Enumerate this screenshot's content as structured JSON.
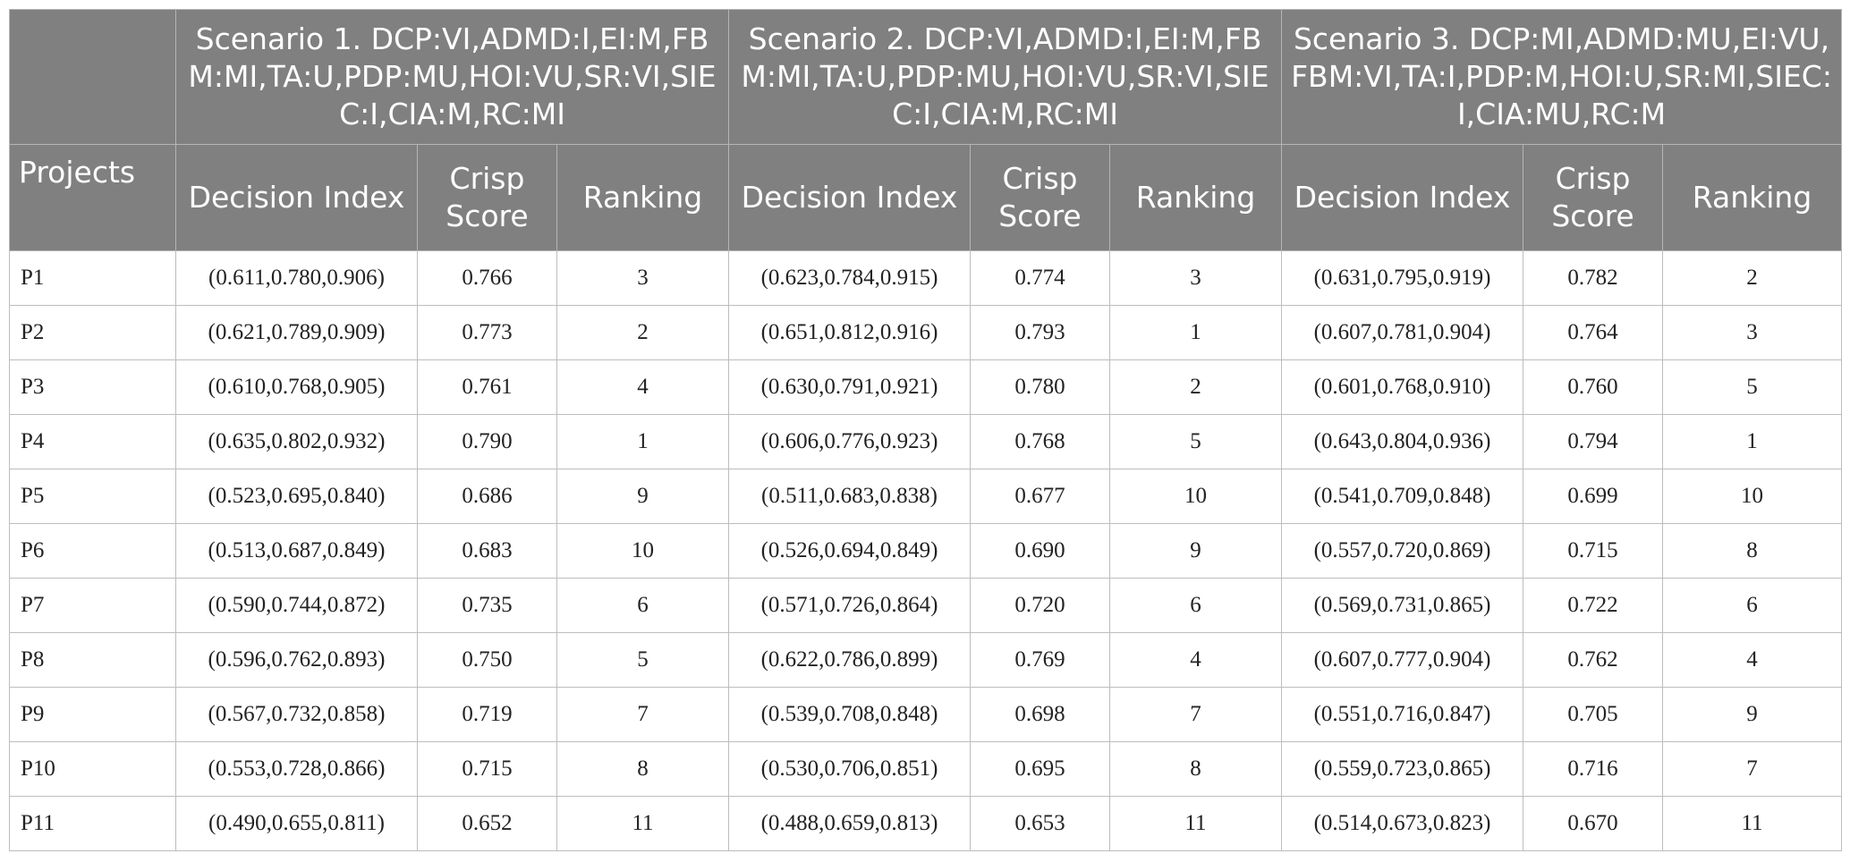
{
  "table": {
    "projects_header": "Projects",
    "scenarios": [
      {
        "title": "Scenario 1. DCP:VI,ADMD:I,EI:M,FBM:MI,TA:U,PDP:MU,HOI:VU,SR:VI,SIEC:I,CIA:M,RC:MI"
      },
      {
        "title": "Scenario 2. DCP:VI,ADMD:I,EI:M,FBM:MI,TA:U,PDP:MU,HOI:VU,SR:VI,SIEC:I,CIA:M,RC:MI"
      },
      {
        "title": "Scenario 3. DCP:MI,ADMD:MU,EI:VU,FBM:VI,TA:I,PDP:M,HOI:U,SR:MI,SIEC:I,CIA:MU,RC:M"
      }
    ],
    "sub_headers": {
      "decision_index": "Decision Index",
      "crisp_score": "Crisp Score",
      "ranking": "Ranking"
    },
    "rows": [
      {
        "project": "P1",
        "s": [
          {
            "di": "(0.611,0.780,0.906)",
            "cs": "0.766",
            "rk": "3"
          },
          {
            "di": "(0.623,0.784,0.915)",
            "cs": "0.774",
            "rk": "3"
          },
          {
            "di": "(0.631,0.795,0.919)",
            "cs": "0.782",
            "rk": "2"
          }
        ]
      },
      {
        "project": "P2",
        "s": [
          {
            "di": "(0.621,0.789,0.909)",
            "cs": "0.773",
            "rk": "2"
          },
          {
            "di": "(0.651,0.812,0.916)",
            "cs": "0.793",
            "rk": "1"
          },
          {
            "di": "(0.607,0.781,0.904)",
            "cs": "0.764",
            "rk": "3"
          }
        ]
      },
      {
        "project": "P3",
        "s": [
          {
            "di": "(0.610,0.768,0.905)",
            "cs": "0.761",
            "rk": "4"
          },
          {
            "di": "(0.630,0.791,0.921)",
            "cs": "0.780",
            "rk": "2"
          },
          {
            "di": "(0.601,0.768,0.910)",
            "cs": "0.760",
            "rk": "5"
          }
        ]
      },
      {
        "project": "P4",
        "s": [
          {
            "di": "(0.635,0.802,0.932)",
            "cs": "0.790",
            "rk": "1"
          },
          {
            "di": "(0.606,0.776,0.923)",
            "cs": "0.768",
            "rk": "5"
          },
          {
            "di": "(0.643,0.804,0.936)",
            "cs": "0.794",
            "rk": "1"
          }
        ]
      },
      {
        "project": "P5",
        "s": [
          {
            "di": "(0.523,0.695,0.840)",
            "cs": "0.686",
            "rk": "9"
          },
          {
            "di": "(0.511,0.683,0.838)",
            "cs": "0.677",
            "rk": "10"
          },
          {
            "di": "(0.541,0.709,0.848)",
            "cs": "0.699",
            "rk": "10"
          }
        ]
      },
      {
        "project": "P6",
        "s": [
          {
            "di": "(0.513,0.687,0.849)",
            "cs": "0.683",
            "rk": "10"
          },
          {
            "di": "(0.526,0.694,0.849)",
            "cs": "0.690",
            "rk": "9"
          },
          {
            "di": "(0.557,0.720,0.869)",
            "cs": "0.715",
            "rk": "8"
          }
        ]
      },
      {
        "project": "P7",
        "s": [
          {
            "di": "(0.590,0.744,0.872)",
            "cs": "0.735",
            "rk": "6"
          },
          {
            "di": "(0.571,0.726,0.864)",
            "cs": "0.720",
            "rk": "6"
          },
          {
            "di": "(0.569,0.731,0.865)",
            "cs": "0.722",
            "rk": "6"
          }
        ]
      },
      {
        "project": "P8",
        "s": [
          {
            "di": "(0.596,0.762,0.893)",
            "cs": "0.750",
            "rk": "5"
          },
          {
            "di": "(0.622,0.786,0.899)",
            "cs": "0.769",
            "rk": "4"
          },
          {
            "di": "(0.607,0.777,0.904)",
            "cs": "0.762",
            "rk": "4"
          }
        ]
      },
      {
        "project": "P9",
        "s": [
          {
            "di": "(0.567,0.732,0.858)",
            "cs": "0.719",
            "rk": "7"
          },
          {
            "di": "(0.539,0.708,0.848)",
            "cs": "0.698",
            "rk": "7"
          },
          {
            "di": "(0.551,0.716,0.847)",
            "cs": "0.705",
            "rk": "9"
          }
        ]
      },
      {
        "project": "P10",
        "s": [
          {
            "di": "(0.553,0.728,0.866)",
            "cs": "0.715",
            "rk": "8"
          },
          {
            "di": "(0.530,0.706,0.851)",
            "cs": "0.695",
            "rk": "8"
          },
          {
            "di": "(0.559,0.723,0.865)",
            "cs": "0.716",
            "rk": "7"
          }
        ]
      },
      {
        "project": "P11",
        "s": [
          {
            "di": "(0.490,0.655,0.811)",
            "cs": "0.652",
            "rk": "11"
          },
          {
            "di": "(0.488,0.659,0.813)",
            "cs": "0.653",
            "rk": "11"
          },
          {
            "di": "(0.514,0.673,0.823)",
            "cs": "0.670",
            "rk": "11"
          }
        ]
      }
    ]
  },
  "colors": {
    "header_bg": "#7f807f",
    "header_text": "#ffffff",
    "grid": "#bdbdbd"
  }
}
